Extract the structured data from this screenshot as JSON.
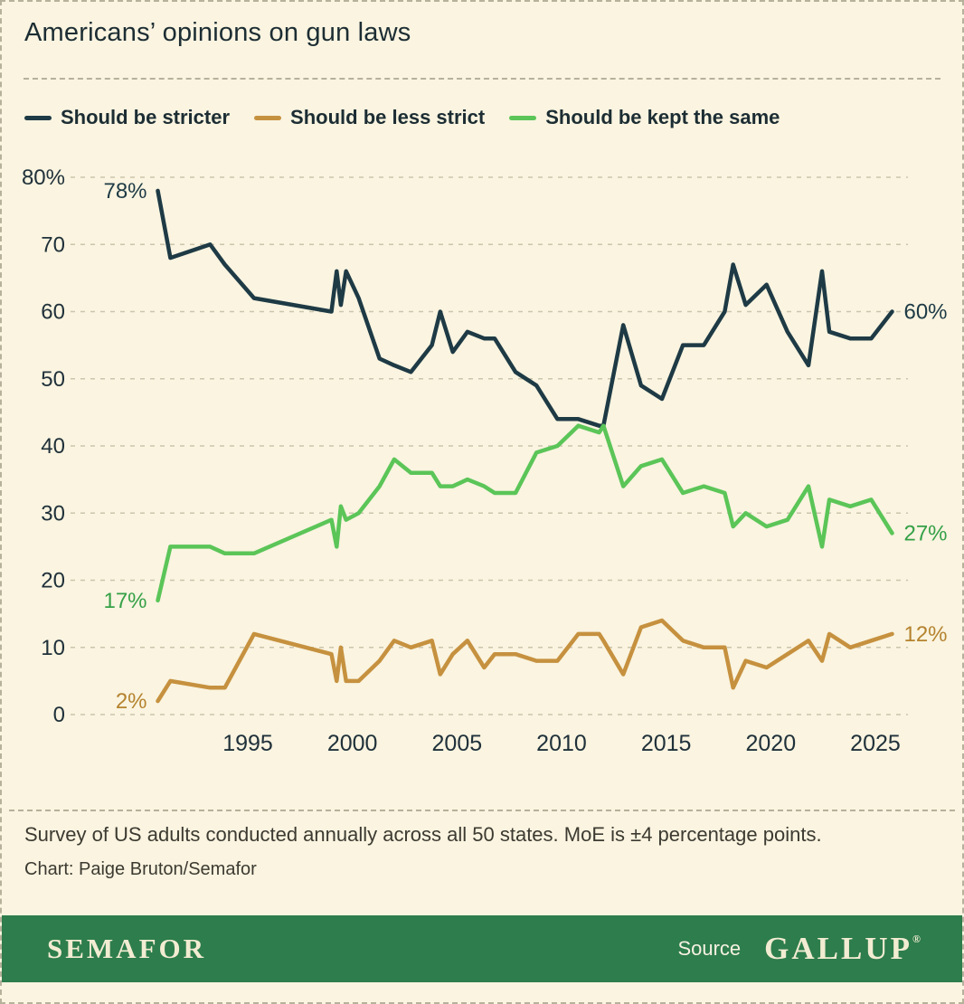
{
  "title": "Americans’ opinions on gun laws",
  "notes": {
    "survey": "Survey of US adults conducted annually across all 50 states. MoE is ±4 percentage points.",
    "credit": "Chart: Paige Bruton/Semafor"
  },
  "footer": {
    "brand": "SEMAFOR",
    "source_label": "Source",
    "source_name": "GALLUP",
    "registered_mark": "®"
  },
  "colors": {
    "background": "#faf4e0",
    "border": "#b6b19b",
    "title_text": "#1c2d33",
    "axis_text": "#20313a",
    "note_text": "#3c3a31",
    "gridline": "#cbc5ad",
    "footer_bar": "#2e7d4c",
    "footer_text": "#f2ecd2"
  },
  "chart_data": {
    "type": "line",
    "title": "Americans’ opinions on gun laws",
    "grid": "horizontal-dashed",
    "legend_position": "top",
    "x": [
      1990.7,
      1991.3,
      1993.2,
      1993.9,
      1995.3,
      1999.0,
      1999.25,
      1999.45,
      1999.7,
      2000.3,
      2001.3,
      2002.0,
      2002.8,
      2003.8,
      2004.2,
      2004.8,
      2005.5,
      2006.3,
      2006.8,
      2007.8,
      2008.8,
      2009.8,
      2010.8,
      2011.8,
      2012.0,
      2012.95,
      2013.8,
      2014.8,
      2015.8,
      2016.8,
      2017.8,
      2018.2,
      2018.8,
      2019.8,
      2020.8,
      2021.8,
      2022.45,
      2022.8,
      2023.8,
      2024.8,
      2025.8
    ],
    "series": [
      {
        "name": "Should be stricter",
        "color": "#1e3a45",
        "label_color": "#1e3a45",
        "start_label": "78%",
        "end_label": "60%",
        "values": [
          78,
          68,
          70,
          67,
          62,
          60,
          66,
          61,
          66,
          62,
          53,
          52,
          51,
          55,
          60,
          54,
          57,
          56,
          56,
          51,
          49,
          44,
          44,
          43,
          43,
          58,
          49,
          47,
          55,
          55,
          60,
          67,
          61,
          64,
          57,
          52,
          66,
          57,
          56,
          56,
          60
        ]
      },
      {
        "name": "Should be less strict",
        "color": "#c6913f",
        "label_color": "#b5832f",
        "start_label": "2%",
        "end_label": "12%",
        "values": [
          2,
          5,
          4,
          4,
          12,
          9,
          5,
          10,
          5,
          5,
          8,
          11,
          10,
          11,
          6,
          9,
          11,
          7,
          9,
          9,
          8,
          8,
          12,
          12,
          11,
          6,
          13,
          14,
          11,
          10,
          10,
          4,
          8,
          7,
          9,
          11,
          8,
          12,
          10,
          11,
          12
        ]
      },
      {
        "name": "Should be kept the same",
        "color": "#5bc558",
        "label_color": "#35a047",
        "start_label": "17%",
        "end_label": "27%",
        "values": [
          17,
          25,
          25,
          24,
          24,
          29,
          25,
          31,
          29,
          30,
          34,
          38,
          36,
          36,
          34,
          34,
          35,
          34,
          33,
          33,
          39,
          40,
          43,
          42,
          43,
          34,
          37,
          38,
          33,
          34,
          33,
          28,
          30,
          28,
          29,
          34,
          25,
          32,
          31,
          32,
          27
        ]
      }
    ],
    "y_axis": {
      "min": 0,
      "max": 80,
      "ticks": [
        {
          "value": 80,
          "label": "80%"
        },
        {
          "value": 70,
          "label": "70"
        },
        {
          "value": 60,
          "label": "60"
        },
        {
          "value": 50,
          "label": "50"
        },
        {
          "value": 40,
          "label": "40"
        },
        {
          "value": 30,
          "label": "30"
        },
        {
          "value": 20,
          "label": "20"
        },
        {
          "value": 10,
          "label": "10"
        },
        {
          "value": 0,
          "label": "0"
        }
      ]
    },
    "x_axis": {
      "min": 1990,
      "max": 2026.5,
      "ticks": [
        {
          "value": 1995,
          "label": "1995"
        },
        {
          "value": 2000,
          "label": "2000"
        },
        {
          "value": 2005,
          "label": "2005"
        },
        {
          "value": 2010,
          "label": "2010"
        },
        {
          "value": 2015,
          "label": "2015"
        },
        {
          "value": 2020,
          "label": "2020"
        },
        {
          "value": 2025,
          "label": "2025"
        }
      ]
    }
  }
}
